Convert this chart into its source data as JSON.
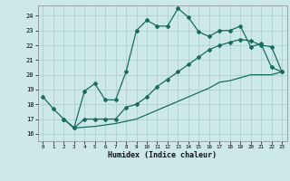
{
  "xlabel": "Humidex (Indice chaleur)",
  "bg_color": "#cce8e8",
  "grid_color": "#aacccc",
  "line_color": "#1a6b60",
  "ylim": [
    15.5,
    24.7
  ],
  "xlim": [
    -0.5,
    23.5
  ],
  "yticks": [
    16,
    17,
    18,
    19,
    20,
    21,
    22,
    23,
    24
  ],
  "xticks": [
    0,
    1,
    2,
    3,
    4,
    5,
    6,
    7,
    8,
    9,
    10,
    11,
    12,
    13,
    14,
    15,
    16,
    17,
    18,
    19,
    20,
    21,
    22,
    23
  ],
  "line1_x": [
    0,
    1,
    2,
    3,
    4,
    5,
    6,
    7,
    8,
    9,
    10,
    11,
    12,
    13,
    14,
    15,
    16,
    17,
    18,
    19,
    20,
    21,
    22,
    23
  ],
  "line1_y": [
    18.5,
    17.7,
    17.0,
    16.4,
    18.9,
    19.4,
    18.3,
    18.3,
    20.2,
    23.0,
    23.7,
    23.3,
    23.3,
    24.5,
    23.9,
    22.9,
    22.6,
    23.0,
    23.0,
    23.3,
    21.9,
    22.1,
    20.5,
    20.2
  ],
  "line2_x": [
    2,
    3,
    4,
    5,
    6,
    7,
    8,
    9,
    10,
    11,
    12,
    13,
    14,
    15,
    16,
    17,
    18,
    19,
    20,
    21,
    22,
    23
  ],
  "line2_y": [
    17.0,
    16.4,
    17.0,
    17.0,
    17.0,
    17.0,
    17.8,
    18.0,
    18.5,
    19.2,
    19.7,
    20.2,
    20.7,
    21.2,
    21.7,
    22.0,
    22.2,
    22.4,
    22.3,
    22.0,
    21.9,
    20.2
  ],
  "line3_x": [
    2,
    3,
    5,
    6,
    7,
    8,
    9,
    10,
    11,
    12,
    13,
    14,
    15,
    16,
    17,
    18,
    19,
    20,
    21,
    22,
    23
  ],
  "line3_y": [
    17.0,
    16.4,
    16.5,
    16.6,
    16.7,
    16.85,
    17.0,
    17.3,
    17.6,
    17.9,
    18.2,
    18.5,
    18.8,
    19.1,
    19.5,
    19.6,
    19.8,
    20.0,
    20.0,
    20.0,
    20.2
  ]
}
